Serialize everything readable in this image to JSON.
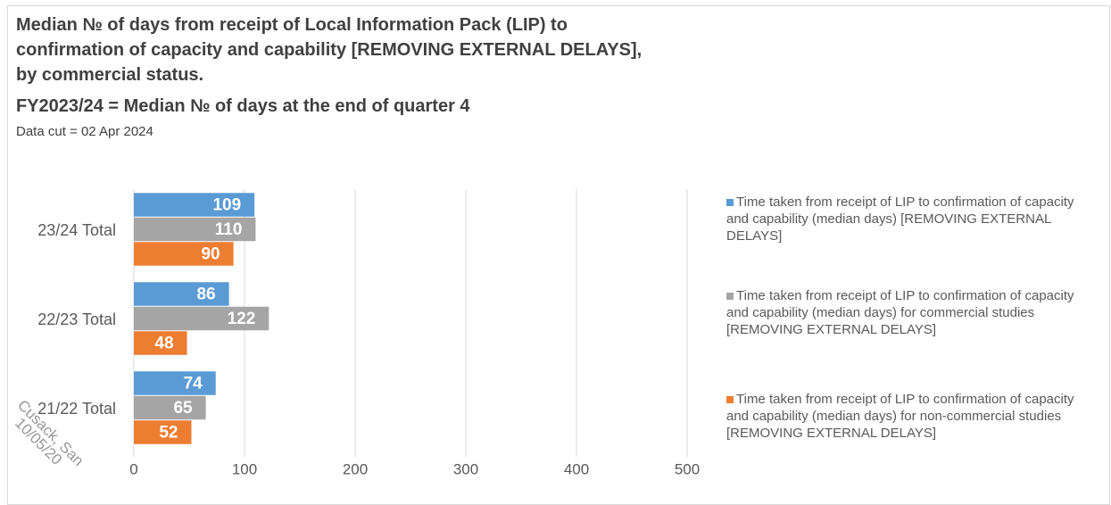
{
  "chart_data": {
    "type": "hbar",
    "title": "Median № of days from receipt of Local Information Pack (LIP) to\nconfirmation of capacity and capability [REMOVING EXTERNAL DELAYS],\nby commercial status.",
    "subtitle": "FY2023/24 = Median № of days at the end of quarter 4",
    "note": "Data cut = 02 Apr 2024",
    "watermark": [
      "Cusack, San",
      "10/05/20"
    ],
    "categories": [
      "23/24 Total",
      "22/23 Total",
      "21/22 Total"
    ],
    "series": [
      {
        "name": "Time taken from receipt of LIP to confirmation of capacity and capability (median days) [REMOVING EXTERNAL DELAYS]",
        "color": "#5b9bd5",
        "values": [
          109,
          86,
          74
        ]
      },
      {
        "name": "Time taken from receipt of LIP to confirmation of capacity and capability (median days) for commercial studies [REMOVING EXTERNAL DELAYS]",
        "color": "#a5a5a5",
        "values": [
          110,
          122,
          65
        ]
      },
      {
        "name": "Time taken from receipt of LIP to confirmation of capacity and capability (median days) for non-commercial studies [REMOVING EXTERNAL DELAYS]",
        "color": "#ed7d31",
        "values": [
          90,
          48,
          52
        ]
      }
    ],
    "xlim": [
      0,
      500
    ],
    "xticks": [
      0,
      100,
      200,
      300,
      400,
      500
    ],
    "grid": true,
    "legend": "right"
  }
}
